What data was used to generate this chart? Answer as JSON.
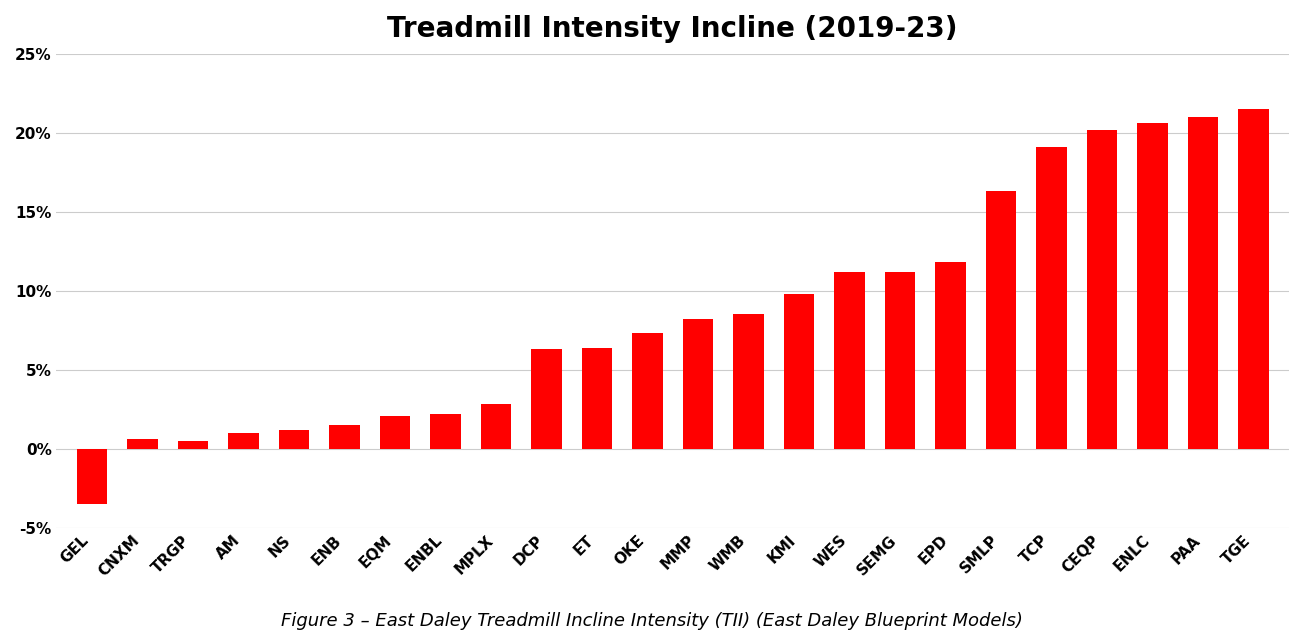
{
  "title": "Treadmill Intensity Incline (2019-23)",
  "caption": "Figure 3 – East Daley Treadmill Incline Intensity (TII) (East Daley Blueprint Models)",
  "categories": [
    "GEL",
    "CNXM",
    "TRGP",
    "AM",
    "NS",
    "ENB",
    "EQM",
    "ENBL",
    "MPLX",
    "DCP",
    "ET",
    "OKE",
    "MMP",
    "WMB",
    "KMI",
    "WES",
    "SEMG",
    "EPD",
    "SMLP",
    "TCP",
    "CEQP",
    "ENLC",
    "PAA",
    "TGE"
  ],
  "values": [
    -3.5,
    0.6,
    0.5,
    1.0,
    1.2,
    1.5,
    2.1,
    2.2,
    2.8,
    6.3,
    6.4,
    7.3,
    8.2,
    8.5,
    9.8,
    11.2,
    11.2,
    11.8,
    16.3,
    19.1,
    20.2,
    20.6,
    21.0,
    21.5
  ],
  "bar_color": "#FF0000",
  "background_color": "#FFFFFF",
  "ylim": [
    -5,
    25
  ],
  "yticks": [
    -5,
    0,
    5,
    10,
    15,
    20,
    25
  ],
  "ytick_labels": [
    "-5%",
    "0%",
    "5%",
    "10%",
    "15%",
    "20%",
    "25%"
  ],
  "title_fontsize": 20,
  "caption_fontsize": 13,
  "tick_fontsize": 11,
  "grid_color": "#CCCCCC"
}
